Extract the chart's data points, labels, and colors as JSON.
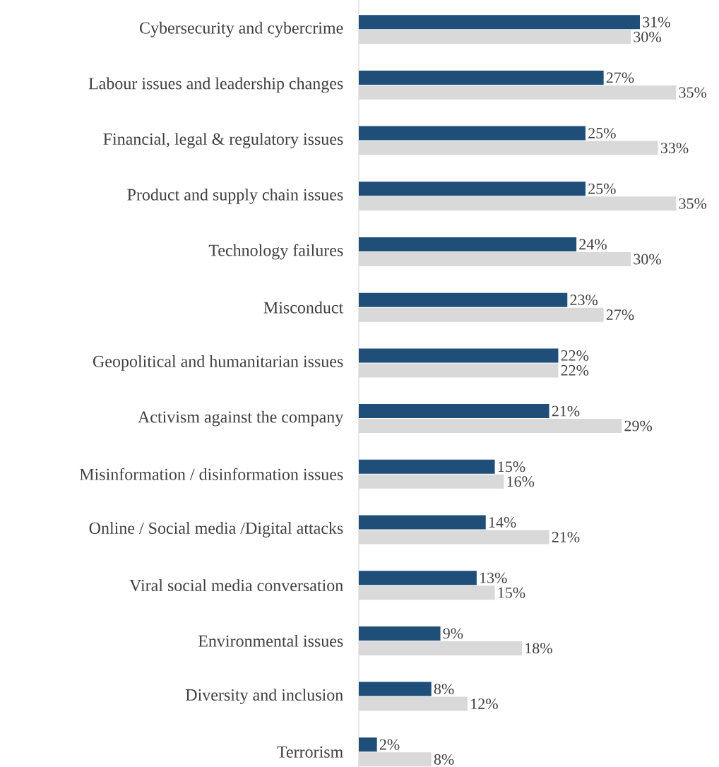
{
  "chart_data": {
    "type": "bar",
    "orientation": "horizontal",
    "categories": [
      "Cybersecurity and cybercrime",
      "Labour issues and leadership changes",
      "Financial, legal & regulatory issues",
      "Product and supply chain issues",
      "Technology failures",
      "Misconduct",
      "Geopolitical and humanitarian issues",
      "Activism against the company",
      "Misinformation / disinformation issues",
      "Online / Social media /Digital attacks",
      "Viral social media conversation",
      "Environmental issues",
      "Diversity and inclusion",
      "Terrorism"
    ],
    "series": [
      {
        "color": "#1f4e79",
        "values": [
          31,
          27,
          25,
          25,
          24,
          23,
          22,
          21,
          15,
          14,
          13,
          9,
          8,
          2
        ],
        "value_labels": [
          "31%",
          "27%",
          "25%",
          "25%",
          "24%",
          "23%",
          "22%",
          "21%",
          "15%",
          "14%",
          "13%",
          "9%",
          "8%",
          "2%"
        ]
      },
      {
        "color": "#d9d9d9",
        "values": [
          30,
          35,
          33,
          35,
          30,
          27,
          22,
          29,
          16,
          21,
          15,
          18,
          12,
          8
        ],
        "value_labels": [
          "30%",
          "35%",
          "33%",
          "35%",
          "30%",
          "27%",
          "22%",
          "29%",
          "16%",
          "21%",
          "15%",
          "18%",
          "12%",
          "8%"
        ]
      }
    ]
  }
}
